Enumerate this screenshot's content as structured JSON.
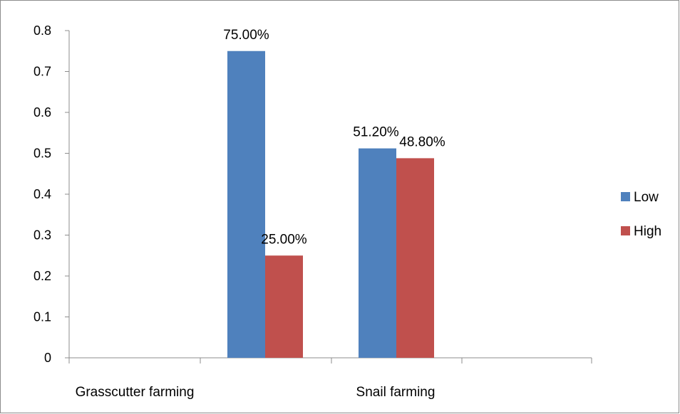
{
  "chart_data": {
    "type": "bar",
    "categories": [
      "Grasscutter farming",
      "Snail farming"
    ],
    "series": [
      {
        "name": "Low",
        "color": "#4F81BD",
        "values": [
          0.75,
          0.512
        ],
        "labels": [
          "75.00%",
          "51.20%"
        ]
      },
      {
        "name": "High",
        "color": "#C0504D",
        "values": [
          0.25,
          0.488
        ],
        "labels": [
          "25.00%",
          "48.80%"
        ]
      }
    ],
    "yticks": [
      "0",
      "0.1",
      "0.2",
      "0.3",
      "0.4",
      "0.5",
      "0.6",
      "0.7",
      "0.8"
    ],
    "ylim": [
      0,
      0.8
    ],
    "grid": false,
    "legend_position": "right",
    "title": "",
    "xlabel": "",
    "ylabel": ""
  }
}
